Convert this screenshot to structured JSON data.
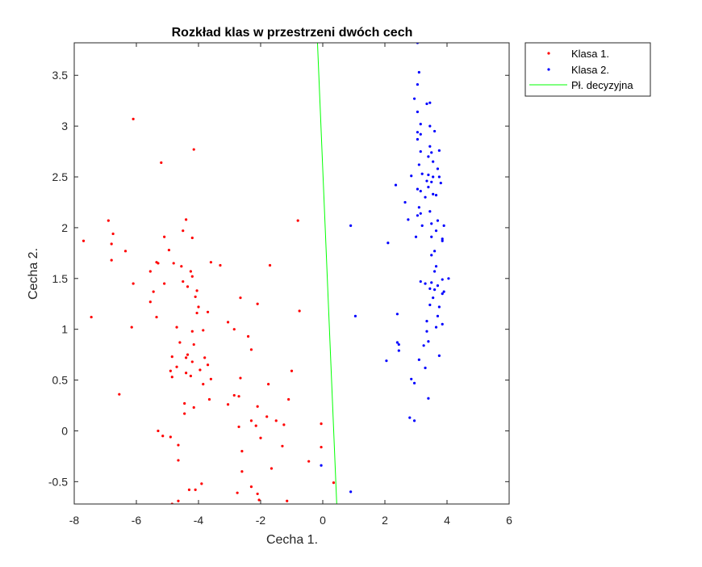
{
  "chart_data": {
    "type": "scatter",
    "title": "Rozkład klas w przestrzeni dwóch cech",
    "xlabel": "Cecha 1.",
    "ylabel": "Cecha 2.",
    "xlim": [
      -8,
      6
    ],
    "ylim": [
      -0.72,
      3.82
    ],
    "xticks": [
      -8,
      -6,
      -4,
      -2,
      0,
      2,
      4,
      6
    ],
    "xtick_labels": [
      "-8",
      "-6",
      "-4",
      "-2",
      "0",
      "2",
      "4",
      "6"
    ],
    "yticks": [
      -0.5,
      0,
      0.5,
      1,
      1.5,
      2,
      2.5,
      3,
      3.5
    ],
    "ytick_labels": [
      "-0.5",
      "0",
      "0.5",
      "1",
      "1.5",
      "2",
      "2.5",
      "3",
      "3.5"
    ],
    "grid": false,
    "legend_position": "outside-top-right",
    "series": [
      {
        "name": "Klasa 1.",
        "color": "#ff0000",
        "marker": "point",
        "points": [
          [
            -6.1,
            3.07
          ],
          [
            -5.2,
            2.64
          ],
          [
            -4.15,
            2.77
          ],
          [
            -7.7,
            1.87
          ],
          [
            -7.45,
            1.12
          ],
          [
            -6.9,
            2.07
          ],
          [
            -6.8,
            1.84
          ],
          [
            -6.75,
            1.94
          ],
          [
            -6.8,
            1.68
          ],
          [
            -6.55,
            0.36
          ],
          [
            -6.35,
            1.77
          ],
          [
            -6.1,
            1.45
          ],
          [
            -6.15,
            1.02
          ],
          [
            -5.35,
            1.66
          ],
          [
            -5.3,
            1.65
          ],
          [
            -5.1,
            1.91
          ],
          [
            -5.55,
            1.57
          ],
          [
            -5.45,
            1.37
          ],
          [
            -5.55,
            1.27
          ],
          [
            -5.35,
            1.12
          ],
          [
            -5.1,
            1.45
          ],
          [
            -4.95,
            1.78
          ],
          [
            -4.5,
            1.97
          ],
          [
            -4.4,
            2.08
          ],
          [
            -4.2,
            1.9
          ],
          [
            -4.8,
            1.65
          ],
          [
            -4.55,
            1.62
          ],
          [
            -4.5,
            1.47
          ],
          [
            -4.25,
            1.57
          ],
          [
            -4.2,
            1.52
          ],
          [
            -4.35,
            1.42
          ],
          [
            -4.05,
            1.38
          ],
          [
            -4.1,
            1.32
          ],
          [
            -3.6,
            1.66
          ],
          [
            -3.3,
            1.63
          ],
          [
            -4.0,
            1.22
          ],
          [
            -4.05,
            1.16
          ],
          [
            -3.7,
            1.17
          ],
          [
            -3.85,
            0.99
          ],
          [
            -4.2,
            0.98
          ],
          [
            -4.7,
            1.02
          ],
          [
            -4.6,
            0.87
          ],
          [
            -4.85,
            0.73
          ],
          [
            -4.7,
            0.63
          ],
          [
            -4.9,
            0.59
          ],
          [
            -4.85,
            0.53
          ],
          [
            -4.4,
            0.72
          ],
          [
            -4.35,
            0.75
          ],
          [
            -4.15,
            0.85
          ],
          [
            -4.2,
            0.68
          ],
          [
            -3.95,
            0.6
          ],
          [
            -3.8,
            0.72
          ],
          [
            -3.7,
            0.65
          ],
          [
            -4.4,
            0.57
          ],
          [
            -4.25,
            0.54
          ],
          [
            -3.85,
            0.46
          ],
          [
            -3.6,
            0.51
          ],
          [
            -3.65,
            0.31
          ],
          [
            -4.45,
            0.27
          ],
          [
            -4.45,
            0.17
          ],
          [
            -4.15,
            0.23
          ],
          [
            -3.05,
            1.07
          ],
          [
            -2.85,
            1.0
          ],
          [
            -2.65,
            1.31
          ],
          [
            -2.1,
            1.25
          ],
          [
            -1.7,
            1.63
          ],
          [
            -2.4,
            0.93
          ],
          [
            -2.3,
            0.8
          ],
          [
            -2.65,
            0.52
          ],
          [
            -2.85,
            0.35
          ],
          [
            -2.7,
            0.34
          ],
          [
            -3.05,
            0.26
          ],
          [
            -2.1,
            0.24
          ],
          [
            -2.3,
            0.1
          ],
          [
            -1.8,
            0.14
          ],
          [
            -1.75,
            0.46
          ],
          [
            -1.0,
            0.59
          ],
          [
            -1.1,
            0.31
          ],
          [
            -1.5,
            0.1
          ],
          [
            -1.25,
            0.06
          ],
          [
            -2.7,
            0.04
          ],
          [
            -2.15,
            0.05
          ],
          [
            -2.0,
            -0.07
          ],
          [
            -1.3,
            -0.15
          ],
          [
            -1.65,
            -0.37
          ],
          [
            -2.6,
            -0.2
          ],
          [
            -2.6,
            -0.4
          ],
          [
            -0.8,
            2.07
          ],
          [
            -0.75,
            1.18
          ],
          [
            -0.05,
            0.07
          ],
          [
            -0.05,
            -0.16
          ],
          [
            -0.45,
            -0.3
          ],
          [
            0.35,
            -0.51
          ],
          [
            -5.3,
            0.0
          ],
          [
            -5.15,
            -0.05
          ],
          [
            -4.9,
            -0.06
          ],
          [
            -4.65,
            -0.14
          ],
          [
            -4.65,
            -0.29
          ],
          [
            -4.3,
            -0.58
          ],
          [
            -4.1,
            -0.58
          ],
          [
            -3.9,
            -0.52
          ],
          [
            -4.65,
            -0.69
          ],
          [
            -4.85,
            -0.72
          ],
          [
            -2.75,
            -0.61
          ],
          [
            -2.3,
            -0.55
          ],
          [
            -2.1,
            -0.62
          ],
          [
            -2.05,
            -0.68
          ],
          [
            -1.15,
            -0.69
          ]
        ]
      },
      {
        "name": "Klasa 2.",
        "color": "#0000ff",
        "marker": "point",
        "points": [
          [
            3.05,
            3.82
          ],
          [
            3.1,
            3.53
          ],
          [
            3.05,
            3.41
          ],
          [
            3.45,
            3.23
          ],
          [
            3.35,
            3.22
          ],
          [
            2.95,
            3.27
          ],
          [
            3.05,
            3.14
          ],
          [
            3.15,
            3.02
          ],
          [
            3.45,
            3.0
          ],
          [
            3.6,
            2.95
          ],
          [
            3.05,
            2.94
          ],
          [
            3.15,
            2.92
          ],
          [
            3.05,
            2.87
          ],
          [
            3.45,
            2.8
          ],
          [
            3.15,
            2.75
          ],
          [
            3.5,
            2.74
          ],
          [
            3.75,
            2.76
          ],
          [
            3.4,
            2.7
          ],
          [
            3.1,
            2.62
          ],
          [
            3.55,
            2.65
          ],
          [
            3.7,
            2.58
          ],
          [
            2.85,
            2.51
          ],
          [
            3.2,
            2.53
          ],
          [
            3.4,
            2.52
          ],
          [
            3.55,
            2.5
          ],
          [
            3.75,
            2.5
          ],
          [
            3.35,
            2.46
          ],
          [
            3.5,
            2.45
          ],
          [
            3.8,
            2.44
          ],
          [
            2.35,
            2.42
          ],
          [
            3.05,
            2.38
          ],
          [
            3.15,
            2.36
          ],
          [
            3.4,
            2.4
          ],
          [
            3.55,
            2.33
          ],
          [
            3.65,
            2.32
          ],
          [
            3.3,
            2.3
          ],
          [
            2.65,
            2.25
          ],
          [
            3.1,
            2.2
          ],
          [
            3.15,
            2.14
          ],
          [
            3.05,
            2.12
          ],
          [
            3.45,
            2.16
          ],
          [
            3.7,
            2.07
          ],
          [
            2.75,
            2.08
          ],
          [
            3.2,
            2.02
          ],
          [
            3.5,
            2.04
          ],
          [
            3.9,
            2.02
          ],
          [
            3.65,
            1.97
          ],
          [
            3.0,
            1.91
          ],
          [
            3.5,
            1.91
          ],
          [
            3.85,
            1.89
          ],
          [
            3.85,
            1.87
          ],
          [
            2.1,
            1.85
          ],
          [
            3.6,
            1.77
          ],
          [
            3.5,
            1.73
          ],
          [
            3.65,
            1.62
          ],
          [
            3.6,
            1.57
          ],
          [
            4.05,
            1.5
          ],
          [
            3.15,
            1.47
          ],
          [
            3.5,
            1.46
          ],
          [
            3.85,
            1.49
          ],
          [
            3.3,
            1.45
          ],
          [
            3.7,
            1.43
          ],
          [
            3.45,
            1.4
          ],
          [
            3.6,
            1.39
          ],
          [
            3.9,
            1.37
          ],
          [
            3.85,
            1.35
          ],
          [
            3.55,
            1.31
          ],
          [
            3.45,
            1.24
          ],
          [
            3.75,
            1.22
          ],
          [
            2.4,
            1.15
          ],
          [
            3.7,
            1.13
          ],
          [
            3.35,
            1.08
          ],
          [
            3.85,
            1.05
          ],
          [
            3.65,
            1.02
          ],
          [
            3.35,
            0.98
          ],
          [
            3.4,
            0.88
          ],
          [
            2.4,
            0.87
          ],
          [
            2.45,
            0.85
          ],
          [
            2.45,
            0.79
          ],
          [
            3.25,
            0.84
          ],
          [
            3.75,
            0.74
          ],
          [
            3.1,
            0.7
          ],
          [
            2.05,
            0.69
          ],
          [
            3.3,
            0.62
          ],
          [
            2.85,
            0.51
          ],
          [
            2.95,
            0.47
          ],
          [
            3.4,
            0.32
          ],
          [
            2.8,
            0.13
          ],
          [
            2.95,
            0.1
          ],
          [
            -0.05,
            -0.34
          ],
          [
            0.9,
            2.02
          ],
          [
            1.05,
            1.13
          ],
          [
            0.9,
            -0.6
          ]
        ]
      },
      {
        "name": "Pł. decyzyjna",
        "color": "#00ff00",
        "type": "line",
        "x": [
          -0.17,
          0.45
        ],
        "y": [
          3.82,
          -0.72
        ]
      }
    ]
  }
}
